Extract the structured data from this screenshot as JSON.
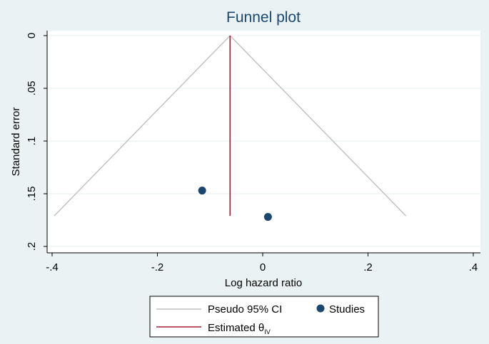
{
  "chart_data": {
    "type": "scatter",
    "title": "Funnel plot",
    "xlabel": "Log hazard ratio",
    "ylabel": "Standard error",
    "xlim": [
      -0.4,
      0.4
    ],
    "ylim": [
      0,
      0.2
    ],
    "y_reversed": true,
    "grid": true,
    "x_ticks": [
      -0.4,
      -0.2,
      0,
      0.2,
      0.4
    ],
    "x_tick_labels": [
      "-.4",
      "-.2",
      "0",
      ".2",
      ".4"
    ],
    "y_ticks": [
      0,
      0.05,
      0.1,
      0.15,
      0.2
    ],
    "y_tick_labels": [
      "0",
      ".05",
      ".1",
      ".15",
      ".2"
    ],
    "studies": [
      {
        "x": -0.115,
        "y": 0.147
      },
      {
        "x": 0.01,
        "y": 0.172
      }
    ],
    "pseudo_ci": {
      "apex": {
        "x": -0.062,
        "y": 0
      },
      "left": {
        "x": -0.396,
        "y": 0.171
      },
      "right": {
        "x": 0.272,
        "y": 0.171
      }
    },
    "estimate": {
      "x": -0.062,
      "y0": 0,
      "y1": 0.171
    },
    "legend": {
      "placement": "bottom",
      "pseudo_ci_label": "Pseudo 95% CI",
      "studies_label": "Studies",
      "estimate_label": "Estimated θ",
      "estimate_subscript": "IV"
    },
    "colors": {
      "background": "#eaf2f3",
      "plot_area": "#ffffff",
      "grid": "#eaf2f3",
      "ci_line": "#bfbfbf",
      "estimate_line": "#a31f34",
      "study_marker": "#1a476f",
      "title": "#1a476f"
    }
  }
}
